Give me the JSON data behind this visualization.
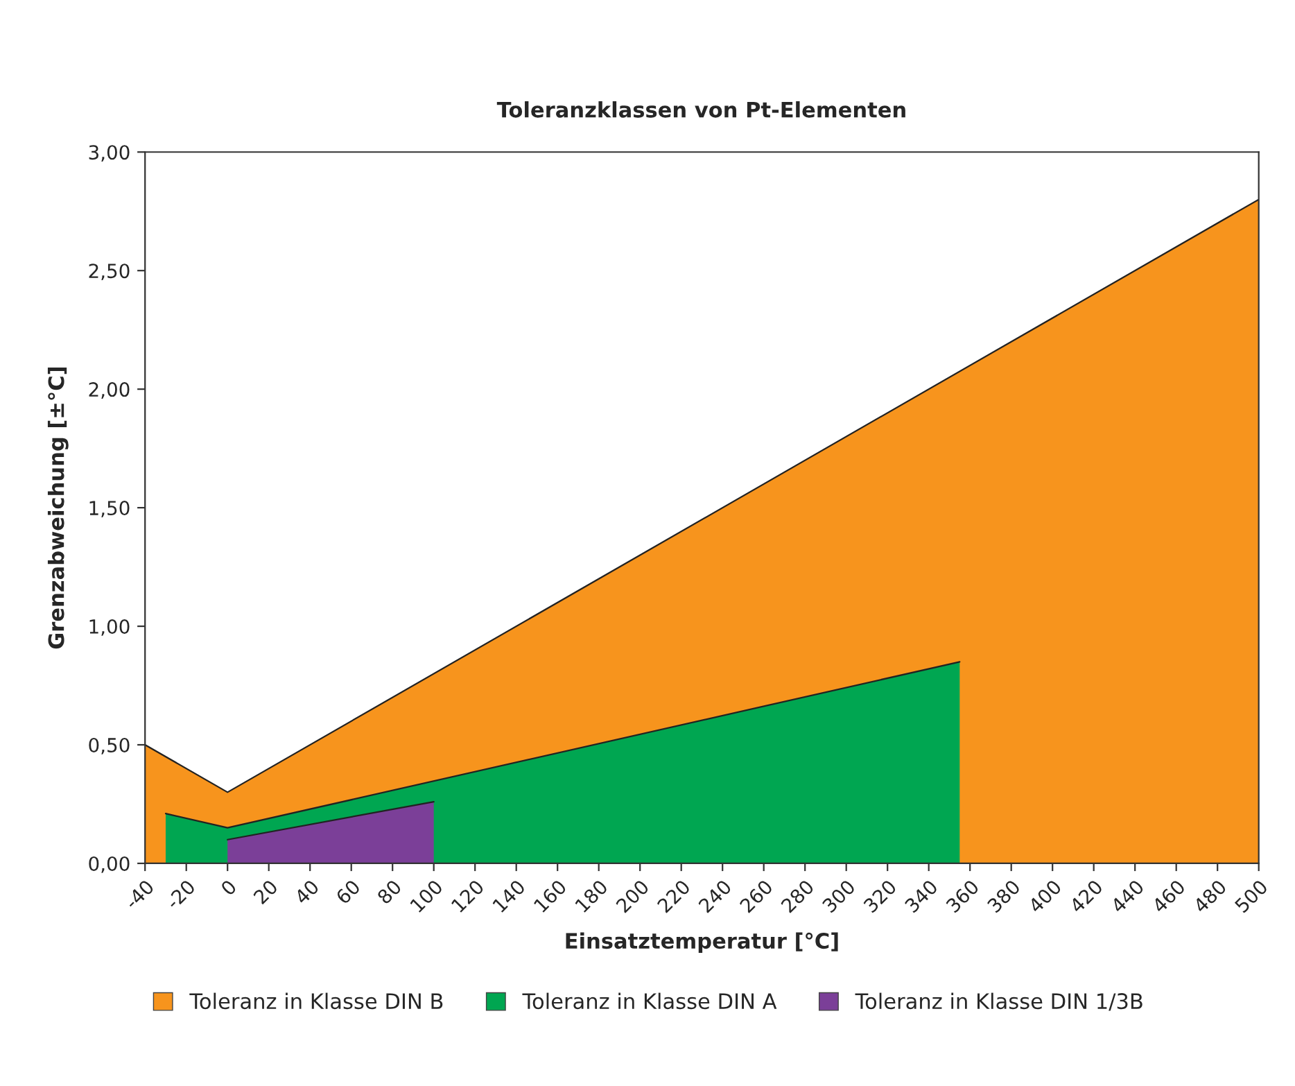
{
  "chart_data": {
    "type": "area",
    "title": "Toleranzklassen von Pt-Elementen",
    "xlabel": "Einsatztemperatur [°C]",
    "ylabel": "Grenzabweichung [±°C]",
    "series": [
      {
        "name": "Toleranz in Klasse DIN B",
        "color": "#f7941d",
        "x": [
          -40,
          0,
          500
        ],
        "values": [
          0.5,
          0.3,
          2.8
        ]
      },
      {
        "name": "Toleranz in Klasse DIN A",
        "color": "#00a651",
        "x": [
          -30,
          0,
          355
        ],
        "values": [
          0.21,
          0.15,
          0.85
        ]
      },
      {
        "name": "Toleranz in Klasse DIN 1/3B",
        "color": "#7b3f98",
        "x": [
          0,
          100
        ],
        "values": [
          0.1,
          0.26
        ]
      }
    ],
    "xlim": [
      -40,
      500
    ],
    "xticks": [
      -40,
      -20,
      0,
      20,
      40,
      60,
      80,
      100,
      120,
      140,
      160,
      180,
      200,
      220,
      240,
      260,
      280,
      300,
      320,
      340,
      360,
      380,
      400,
      420,
      440,
      460,
      480,
      500
    ],
    "ylim": [
      0,
      3
    ],
    "yticks": [
      {
        "value": 0,
        "label": "0,00"
      },
      {
        "value": 0.5,
        "label": "0,50"
      },
      {
        "value": 1,
        "label": "1,00"
      },
      {
        "value": 1.5,
        "label": "1,50"
      },
      {
        "value": 2,
        "label": "2,00"
      },
      {
        "value": 2.5,
        "label": "2,50"
      },
      {
        "value": 3,
        "label": "3,00"
      }
    ],
    "grid": false,
    "legend": "bottom"
  }
}
